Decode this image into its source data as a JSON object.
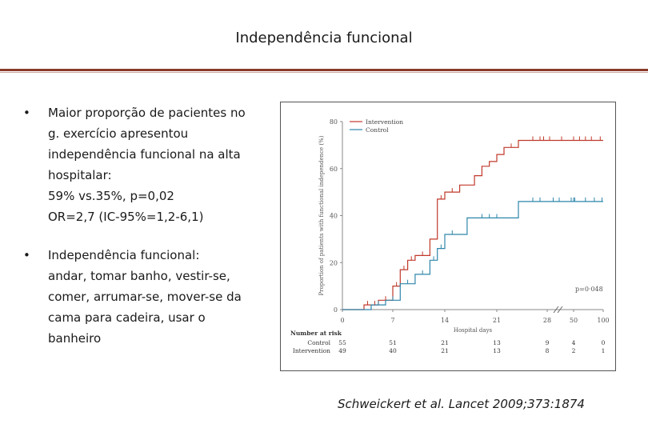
{
  "slide": {
    "title": "Independência funcional",
    "bullets": [
      {
        "lines": [
          "Maior proporção de pacientes no",
          "g. exercício apresentou",
          "independência funcional na alta",
          "hospitalar:",
          "59% vs.35%, p=0,02",
          "OR=2,7 (IC-95%=1,2-6,1)"
        ]
      },
      {
        "lines": [
          "Independência funcional:",
          "andar, tomar banho, vestir-se,",
          "comer, arrumar-se, mover-se da",
          "cama para cadeira, usar o",
          "banheiro"
        ]
      }
    ],
    "citation": "Schweickert et al. Lancet 2009;373:1874"
  },
  "chart_data": {
    "type": "line",
    "ylabel": "Proportion of patients with functional independence (%)",
    "xlabel": "Hospital days",
    "ylim": [
      0,
      80
    ],
    "y_ticks": [
      "0",
      "20",
      "40",
      "60",
      "80"
    ],
    "x_ticks": [
      "0",
      "7",
      "14",
      "21",
      "28",
      "50",
      "100"
    ],
    "pvalue": "p=0·048",
    "colors": {
      "Intervention": "#c0392b",
      "Control": "#2e86ab"
    },
    "series": [
      {
        "name": "Intervention",
        "color": "#c0392b",
        "points": [
          [
            0,
            0
          ],
          [
            3,
            0
          ],
          [
            3,
            2
          ],
          [
            5,
            2
          ],
          [
            5,
            4
          ],
          [
            7,
            4
          ],
          [
            7,
            10
          ],
          [
            8,
            10
          ],
          [
            8,
            17
          ],
          [
            9,
            17
          ],
          [
            9,
            21
          ],
          [
            10,
            21
          ],
          [
            10,
            23
          ],
          [
            12,
            23
          ],
          [
            12,
            30
          ],
          [
            13,
            30
          ],
          [
            13,
            47
          ],
          [
            14,
            47
          ],
          [
            14,
            50
          ],
          [
            16,
            50
          ],
          [
            16,
            53
          ],
          [
            18,
            53
          ],
          [
            18,
            57
          ],
          [
            19,
            57
          ],
          [
            19,
            61
          ],
          [
            20,
            61
          ],
          [
            20,
            63
          ],
          [
            21,
            63
          ],
          [
            21,
            66
          ],
          [
            22,
            66
          ],
          [
            22,
            69
          ],
          [
            24,
            69
          ],
          [
            24,
            72
          ],
          [
            28,
            72
          ],
          [
            50,
            72
          ],
          [
            100,
            72
          ]
        ]
      },
      {
        "name": "Control",
        "color": "#2e86ab",
        "points": [
          [
            0,
            0
          ],
          [
            4,
            0
          ],
          [
            4,
            2
          ],
          [
            6,
            2
          ],
          [
            6,
            4
          ],
          [
            8,
            4
          ],
          [
            8,
            11
          ],
          [
            10,
            11
          ],
          [
            10,
            15
          ],
          [
            12,
            15
          ],
          [
            12,
            21
          ],
          [
            13,
            21
          ],
          [
            13,
            26
          ],
          [
            14,
            26
          ],
          [
            14,
            32
          ],
          [
            17,
            32
          ],
          [
            17,
            39
          ],
          [
            24,
            39
          ],
          [
            24,
            46
          ],
          [
            28,
            46
          ],
          [
            50,
            46
          ],
          [
            100,
            46
          ]
        ]
      }
    ],
    "number_at_risk": {
      "label": "Number at risk",
      "rows": [
        {
          "name": "Control",
          "values": [
            "55",
            "51",
            "21",
            "13",
            "9",
            "4",
            "0"
          ]
        },
        {
          "name": "Intervention",
          "values": [
            "49",
            "40",
            "21",
            "13",
            "8",
            "2",
            "1"
          ]
        }
      ]
    }
  }
}
